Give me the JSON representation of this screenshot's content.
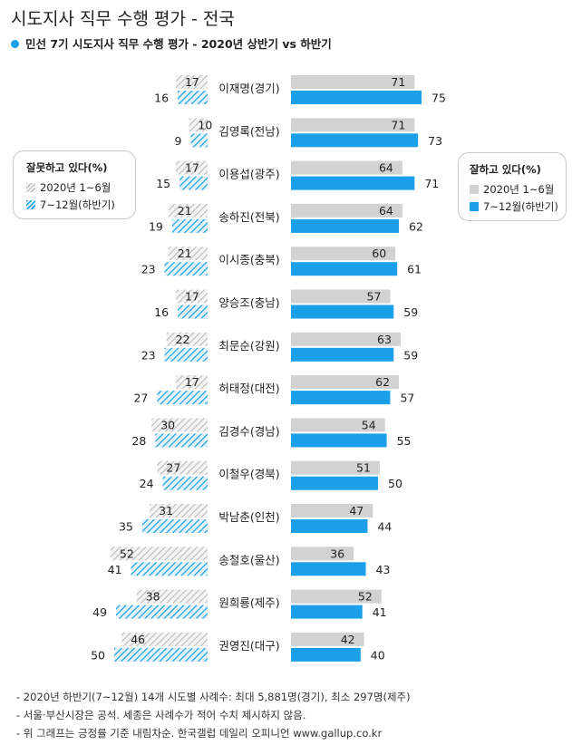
{
  "title": "시도지사 직무 수행 평가 - 전국",
  "subtitle": "민선 7기 시도지사 직무 수행 평가 - 2020년 상반기 vs 하반기",
  "legend_left": {
    "title": "잘못하고 있다(%)",
    "items": [
      "2020년 1~6월",
      "7~12월(하반기)"
    ]
  },
  "legend_right": {
    "title": "잘하고 있다(%)",
    "items": [
      "2020년 1~6월",
      "7~12월(하반기)"
    ]
  },
  "colors": {
    "blue": "#1a9fe8",
    "gray": "#d2d2d2",
    "hatch_gray": "#bbbbbb"
  },
  "chart_data": {
    "type": "bar",
    "orientation": "horizontal-butterfly",
    "categories": [
      "이재명(경기)",
      "김영록(전남)",
      "이용섭(광주)",
      "송하진(전북)",
      "이시종(충북)",
      "양승조(충남)",
      "최문순(강원)",
      "허태정(대전)",
      "김경수(경남)",
      "이철우(경북)",
      "박남춘(인천)",
      "송철호(울산)",
      "원희룡(제주)",
      "권영진(대구)"
    ],
    "series": [
      {
        "name": "잘못하고 있다 2020년 1~6월",
        "side": "left",
        "values": [
          17,
          10,
          17,
          21,
          21,
          17,
          22,
          17,
          30,
          27,
          31,
          52,
          38,
          46
        ]
      },
      {
        "name": "잘못하고 있다 7~12월(하반기)",
        "side": "left",
        "values": [
          16,
          9,
          15,
          19,
          23,
          16,
          23,
          27,
          28,
          24,
          35,
          41,
          49,
          50
        ]
      },
      {
        "name": "잘하고 있다 2020년 1~6월",
        "side": "right",
        "values": [
          71,
          71,
          64,
          64,
          60,
          57,
          63,
          62,
          54,
          51,
          47,
          36,
          52,
          42
        ]
      },
      {
        "name": "잘하고 있다 7~12월(하반기)",
        "side": "right",
        "values": [
          75,
          73,
          71,
          62,
          61,
          59,
          59,
          57,
          55,
          50,
          44,
          43,
          41,
          40
        ]
      }
    ],
    "xlim": [
      0,
      100
    ]
  },
  "notes": [
    "- 2020년 하반기(7~12월) 14개 시도별 사례수: 최대 5,881명(경기), 최소 297명(제주)",
    "- 서울·부산시장은 공석. 세종은 사례수가 적어 수치 제시하지 않음.",
    "- 위 그래프는 긍정률 기준 내림차순. 한국갤럽 데일리 오피니언 www.gallup.co.kr"
  ]
}
